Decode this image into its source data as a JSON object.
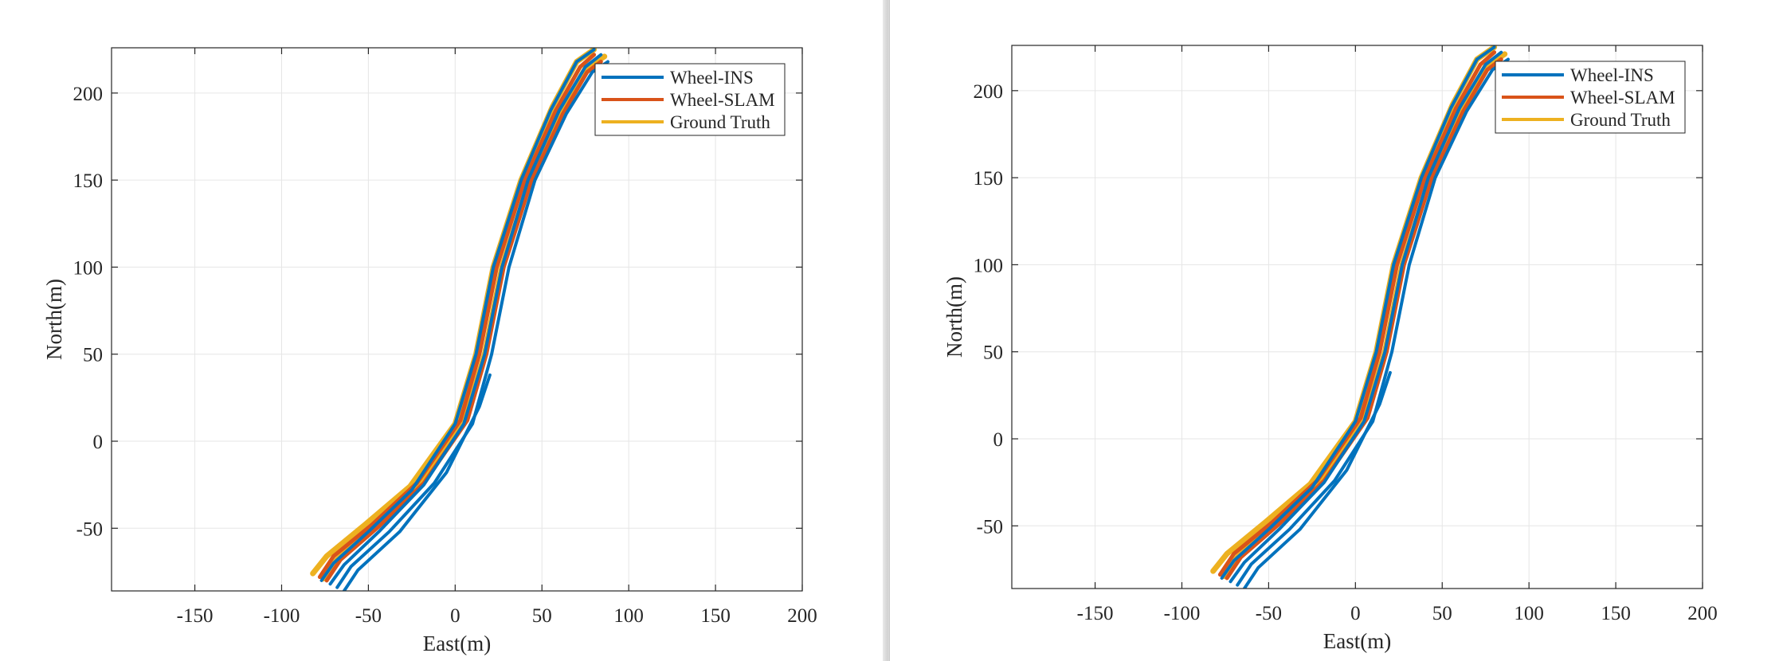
{
  "colors": {
    "Wheel-INS": "#0072BD",
    "Wheel-SLAM": "#D95319",
    "Ground Truth": "#EDB120",
    "grid": "#e6e6e6",
    "axes": "#262626"
  },
  "chart_data": [
    {
      "type": "line",
      "xlabel": "East(m)",
      "ylabel": "North(m)",
      "xlim": [
        -198,
        200
      ],
      "ylim": [
        -86,
        226
      ],
      "xticks": [
        -150,
        -100,
        -50,
        0,
        50,
        100,
        150,
        200
      ],
      "yticks": [
        -50,
        0,
        50,
        100,
        150,
        200
      ],
      "xtick_labels": [
        "-150",
        "-100",
        "-50",
        "0",
        "50",
        "100",
        "150",
        "200"
      ],
      "ytick_labels": [
        "-50",
        "0",
        "50",
        "100",
        "150",
        "200"
      ],
      "grid": true,
      "legend": {
        "position": "top-right",
        "entries": [
          "Wheel-INS",
          "Wheel-SLAM",
          "Ground Truth"
        ]
      },
      "series": [
        {
          "name": "Wheel-INS",
          "lines": [
            {
              "x": [
                -77,
                -70,
                -50,
                -25,
                0,
                12,
                22,
                38,
                55,
                70,
                80
              ],
              "y": [
                -80,
                -70,
                -52,
                -28,
                10,
                50,
                100,
                150,
                190,
                218,
                225
              ]
            },
            {
              "x": [
                -72,
                -64,
                -44,
                -18,
                5,
                17,
                27,
                42,
                60,
                75,
                84
              ],
              "y": [
                -82,
                -71,
                -52,
                -25,
                10,
                50,
                100,
                150,
                190,
                215,
                222
              ]
            },
            {
              "x": [
                -68,
                -60,
                -38,
                -12,
                10,
                21,
                31,
                46,
                64,
                79,
                88
              ],
              "y": [
                -84,
                -72,
                -52,
                -24,
                10,
                50,
                100,
                150,
                188,
                212,
                218
              ]
            },
            {
              "x": [
                -64,
                -56,
                -32,
                -5,
                14,
                20
              ],
              "y": [
                -86,
                -74,
                -52,
                -18,
                20,
                38
              ]
            }
          ]
        },
        {
          "name": "Wheel-SLAM",
          "lines": [
            {
              "x": [
                -78,
                -70,
                -48,
                -22,
                3,
                14,
                24,
                40,
                58,
                72,
                80
              ],
              "y": [
                -78,
                -66,
                -48,
                -24,
                12,
                50,
                100,
                150,
                190,
                215,
                222
              ]
            },
            {
              "x": [
                -74,
                -66,
                -44,
                -18,
                7,
                18,
                28,
                44,
                62,
                76,
                84
              ],
              "y": [
                -80,
                -68,
                -49,
                -24,
                12,
                50,
                100,
                150,
                188,
                212,
                218
              ]
            }
          ]
        },
        {
          "name": "Ground Truth",
          "lines": [
            {
              "x": [
                -82,
                -74,
                -52,
                -26,
                0,
                12,
                22,
                38,
                56,
                70,
                80
              ],
              "y": [
                -76,
                -66,
                -48,
                -26,
                10,
                50,
                100,
                150,
                192,
                218,
                225
              ]
            },
            {
              "x": [
                -76,
                -68,
                -46,
                -20,
                5,
                17,
                27,
                43,
                61,
                75,
                86
              ],
              "y": [
                -79,
                -68,
                -49,
                -25,
                10,
                50,
                100,
                150,
                190,
                214,
                221
              ]
            }
          ]
        }
      ]
    },
    {
      "type": "line",
      "xlabel": "East(m)",
      "ylabel": "North(m)",
      "xlim": [
        -198,
        200
      ],
      "ylim": [
        -86,
        226
      ],
      "xticks": [
        -150,
        -100,
        -50,
        0,
        50,
        100,
        150,
        200
      ],
      "yticks": [
        -50,
        0,
        50,
        100,
        150,
        200
      ],
      "xtick_labels": [
        "-150",
        "-100",
        "-50",
        "0",
        "50",
        "100",
        "150",
        "200"
      ],
      "ytick_labels": [
        "-50",
        "0",
        "50",
        "100",
        "150",
        "200"
      ],
      "grid": true,
      "legend": {
        "position": "top-right",
        "entries": [
          "Wheel-INS",
          "Wheel-SLAM",
          "Ground Truth"
        ]
      },
      "series": [
        {
          "name": "Wheel-INS",
          "lines": [
            {
              "x": [
                -77,
                -70,
                -50,
                -25,
                0,
                12,
                22,
                38,
                55,
                70,
                80
              ],
              "y": [
                -80,
                -70,
                -52,
                -28,
                10,
                50,
                100,
                150,
                190,
                218,
                225
              ]
            },
            {
              "x": [
                -72,
                -64,
                -44,
                -18,
                5,
                17,
                27,
                42,
                60,
                75,
                84
              ],
              "y": [
                -82,
                -71,
                -52,
                -25,
                10,
                50,
                100,
                150,
                190,
                215,
                222
              ]
            },
            {
              "x": [
                -68,
                -60,
                -38,
                -12,
                10,
                21,
                31,
                46,
                64,
                79,
                88
              ],
              "y": [
                -84,
                -72,
                -52,
                -24,
                10,
                50,
                100,
                150,
                188,
                212,
                218
              ]
            },
            {
              "x": [
                -64,
                -56,
                -32,
                -5,
                14,
                20
              ],
              "y": [
                -86,
                -74,
                -52,
                -18,
                20,
                38
              ]
            }
          ]
        },
        {
          "name": "Wheel-SLAM",
          "lines": [
            {
              "x": [
                -78,
                -70,
                -48,
                -22,
                3,
                14,
                24,
                40,
                58,
                72,
                80
              ],
              "y": [
                -78,
                -66,
                -48,
                -24,
                12,
                50,
                100,
                150,
                190,
                215,
                222
              ]
            },
            {
              "x": [
                -74,
                -66,
                -44,
                -18,
                7,
                18,
                28,
                44,
                62,
                76,
                84
              ],
              "y": [
                -80,
                -68,
                -49,
                -24,
                12,
                50,
                100,
                150,
                188,
                212,
                218
              ]
            }
          ]
        },
        {
          "name": "Ground Truth",
          "lines": [
            {
              "x": [
                -82,
                -74,
                -52,
                -26,
                0,
                12,
                22,
                38,
                56,
                70,
                80
              ],
              "y": [
                -76,
                -66,
                -48,
                -26,
                10,
                50,
                100,
                150,
                192,
                218,
                225
              ]
            },
            {
              "x": [
                -76,
                -68,
                -46,
                -20,
                5,
                17,
                27,
                43,
                61,
                75,
                86
              ],
              "y": [
                -79,
                -68,
                -49,
                -25,
                10,
                50,
                100,
                150,
                190,
                214,
                221
              ]
            }
          ]
        }
      ]
    }
  ]
}
